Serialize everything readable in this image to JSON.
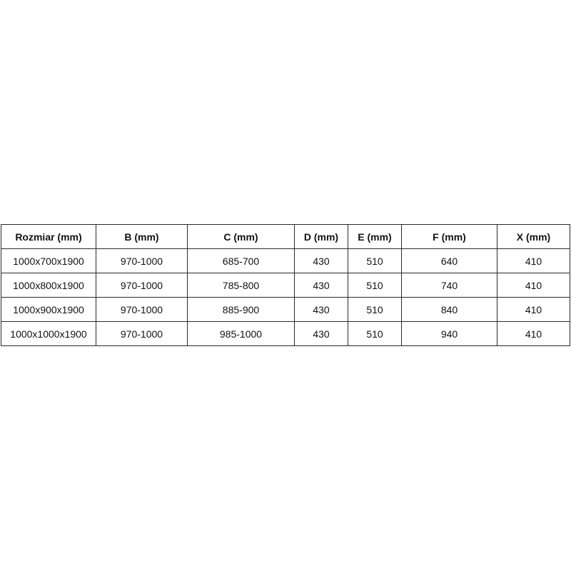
{
  "table": {
    "headers": [
      "Rozmiar (mm)",
      "B (mm)",
      "C (mm)",
      "D (mm)",
      "E (mm)",
      "F (mm)",
      "X (mm)"
    ],
    "rows": [
      [
        "1000x700x1900",
        "970-1000",
        "685-700",
        "430",
        "510",
        "640",
        "410"
      ],
      [
        "1000x800x1900",
        "970-1000",
        "785-800",
        "430",
        "510",
        "740",
        "410"
      ],
      [
        "1000x900x1900",
        "970-1000",
        "885-900",
        "430",
        "510",
        "840",
        "410"
      ],
      [
        "1000x1000x1900",
        "970-1000",
        "985-1000",
        "430",
        "510",
        "940",
        "410"
      ]
    ]
  }
}
